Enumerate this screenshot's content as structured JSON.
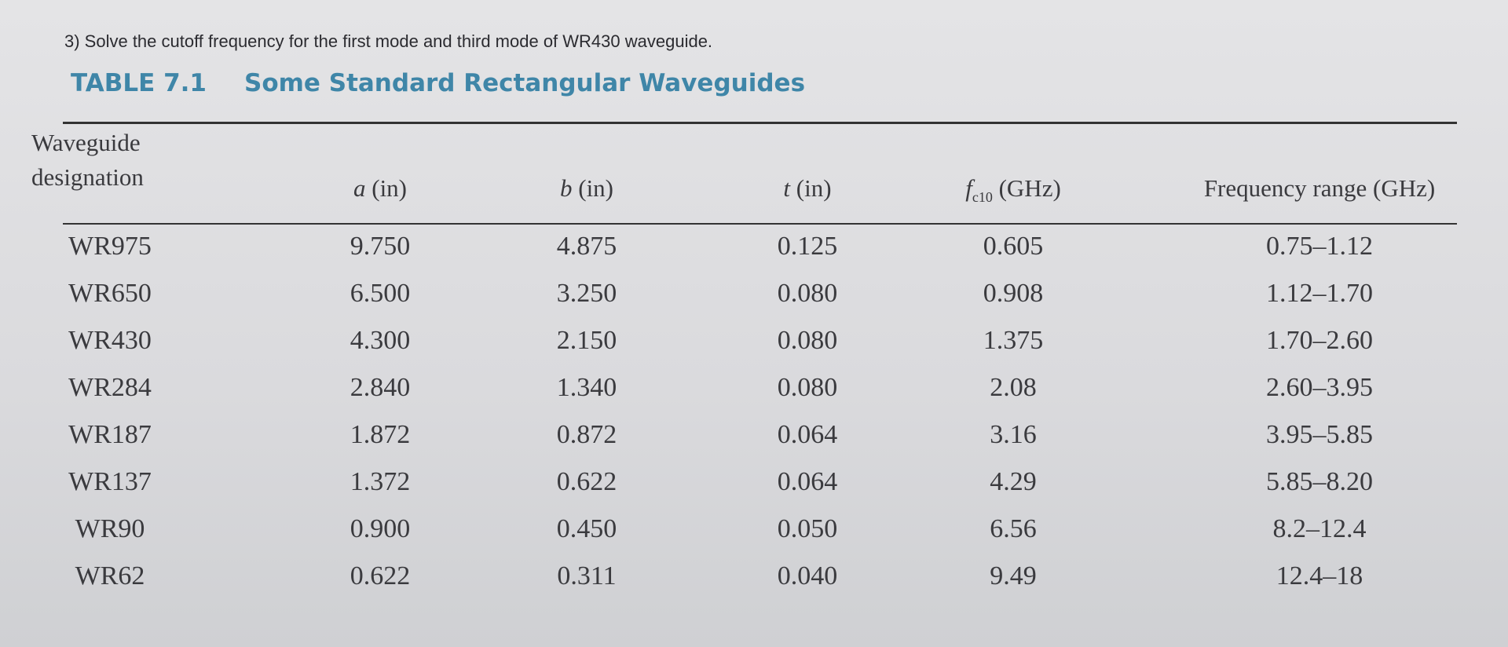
{
  "question": "3) Solve the cutoff frequency for the first mode and third mode of WR430 waveguide.",
  "table": {
    "label": "TABLE 7.1",
    "title": "Some Standard Rectangular Waveguides",
    "headers": [
      {
        "text": "Waveguide designation"
      },
      {
        "symbol": "a",
        "unit": "(in)"
      },
      {
        "symbol": "b",
        "unit": "(in)"
      },
      {
        "symbol": "t",
        "unit": "(in)"
      },
      {
        "symbol": "f",
        "subscript": "c10",
        "unit": "(GHz)"
      },
      {
        "text": "Frequency range (GHz)"
      }
    ],
    "rows": [
      [
        "WR975",
        "9.750",
        "4.875",
        "0.125",
        "0.605",
        "0.75–1.12"
      ],
      [
        "WR650",
        "6.500",
        "3.250",
        "0.080",
        "0.908",
        "1.12–1.70"
      ],
      [
        "WR430",
        "4.300",
        "2.150",
        "0.080",
        "1.375",
        "1.70–2.60"
      ],
      [
        "WR284",
        "2.840",
        "1.340",
        "0.080",
        "2.08",
        "2.60–3.95"
      ],
      [
        "WR187",
        "1.872",
        "0.872",
        "0.064",
        "3.16",
        "3.95–5.85"
      ],
      [
        "WR137",
        "1.372",
        "0.622",
        "0.064",
        "4.29",
        "5.85–8.20"
      ],
      [
        "WR90",
        "0.900",
        "0.450",
        "0.050",
        "6.56",
        "8.2–12.4"
      ],
      [
        "WR62",
        "0.622",
        "0.311",
        "0.040",
        "9.49",
        "12.4–18"
      ]
    ]
  }
}
